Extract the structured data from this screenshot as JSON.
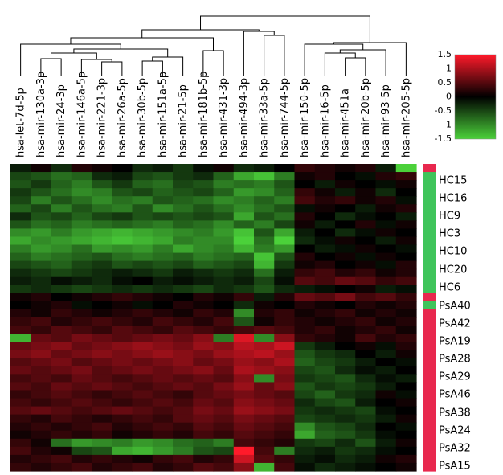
{
  "chart_data": {
    "type": "heatmap",
    "columns": [
      "hsa-let-7d-5p",
      "hsa-mir-130a-3p",
      "hsa-mir-24-3p",
      "hsa-mir-146a-5p",
      "hsa-mir-221-3p",
      "hsa-mir-26a-5p",
      "hsa-mir-30b-5p",
      "hsa-mir-151a-5p",
      "hsa-mir-21-5p",
      "hsa-mir-181b-5p",
      "hsa-mir-431-3p",
      "hsa-mir-494-3p",
      "hsa-mir-33a-5p",
      "hsa-mir-744-5p",
      "hsa-mir-150-5p",
      "hsa-mir-16-5p",
      "hsa-mir-451a",
      "hsa-mir-20b-5p",
      "hsa-mir-93-5p",
      "hsa-mir-205-5p"
    ],
    "row_labels": [
      "HC15",
      "HC16",
      "HC9",
      "HC3",
      "HC10",
      "HC20",
      "HC6",
      "PsA40",
      "PsA42",
      "PsA19",
      "PsA28",
      "PsA29",
      "PsA46",
      "PsA38",
      "PsA24",
      "PsA32",
      "PsA15"
    ],
    "row_count": 38,
    "group_bar": [
      "PsA",
      "HC",
      "HC",
      "HC",
      "HC",
      "HC",
      "HC",
      "HC",
      "HC",
      "HC",
      "HC",
      "HC",
      "HC",
      "HC",
      "HC",
      "HC",
      "PsA",
      "HC",
      "PsA",
      "PsA",
      "PsA",
      "PsA",
      "PsA",
      "PsA",
      "PsA",
      "PsA",
      "PsA",
      "PsA",
      "PsA",
      "PsA",
      "PsA",
      "PsA",
      "PsA",
      "PsA",
      "PsA",
      "PsA",
      "PsA",
      "PsA"
    ],
    "group_colors": {
      "HC": "#3fc45a",
      "PsA": "#e8284e"
    },
    "colorbar": {
      "min": -1.5,
      "max": 1.5,
      "ticks": [
        "1.5",
        "1",
        "0.5",
        "0",
        "-0.5",
        "-1",
        "-1.5"
      ]
    },
    "color_scale": {
      "low": "#4bd13a",
      "mid": "#000000",
      "high": "#ff1a2a"
    },
    "legend_placement": "top-right",
    "values": [
      [
        -0.2,
        0.1,
        -0.3,
        0.2,
        0.1,
        0.0,
        -0.3,
        -0.2,
        -0.4,
        -0.1,
        0.1,
        -0.3,
        -0.2,
        0.0,
        0.3,
        0.2,
        0.1,
        0.2,
        -0.2,
        -1.5
      ],
      [
        -0.5,
        -0.6,
        -0.8,
        -0.7,
        -0.3,
        -0.2,
        -0.5,
        -0.6,
        -0.4,
        -0.3,
        -0.7,
        -1.2,
        -1.4,
        -0.9,
        0.1,
        0.2,
        0.0,
        -0.1,
        0.2,
        0.3
      ],
      [
        -0.6,
        -0.4,
        -0.7,
        -0.9,
        -0.6,
        -0.4,
        -0.7,
        -0.8,
        -0.5,
        -0.6,
        -0.9,
        -0.8,
        -0.9,
        -0.6,
        0.0,
        -0.2,
        0.1,
        0.0,
        -0.1,
        0.1
      ],
      [
        -0.4,
        -0.6,
        -0.8,
        -1.0,
        -0.9,
        -0.6,
        -0.5,
        -0.7,
        -0.6,
        -0.5,
        -0.7,
        -1.1,
        -1.0,
        -0.7,
        0.3,
        0.1,
        -0.2,
        0.1,
        -0.3,
        0.0
      ],
      [
        -0.5,
        -0.9,
        -0.6,
        -0.8,
        -1.0,
        -0.8,
        -0.9,
        -0.6,
        -0.7,
        -0.8,
        -1.0,
        -0.9,
        -0.7,
        -0.9,
        0.4,
        0.2,
        0.3,
        0.1,
        0.2,
        -0.1
      ],
      [
        -0.7,
        -0.5,
        -0.9,
        -0.6,
        -0.8,
        -0.9,
        -0.6,
        -1.0,
        -0.8,
        -0.6,
        -0.8,
        -1.0,
        -0.8,
        -0.6,
        -0.1,
        0.1,
        0.0,
        -0.2,
        0.1,
        0.2
      ],
      [
        -0.3,
        -0.6,
        -0.5,
        -0.7,
        -0.5,
        -0.4,
        -0.6,
        -0.5,
        -0.6,
        -0.5,
        -0.6,
        -1.2,
        -0.6,
        -0.8,
        0.2,
        0.0,
        -0.3,
        -0.1,
        0.0,
        -0.2
      ],
      [
        -0.6,
        -0.8,
        -0.7,
        -0.9,
        -0.8,
        -0.7,
        -0.8,
        -0.9,
        -0.7,
        -0.8,
        -1.0,
        -0.7,
        -0.9,
        -0.5,
        0.1,
        -0.2,
        0.0,
        0.2,
        -0.1,
        0.1
      ],
      [
        -1.0,
        -1.1,
        -0.9,
        -1.1,
        -1.2,
        -1.3,
        -1.2,
        -1.1,
        -1.0,
        -0.9,
        -1.1,
        -1.4,
        -0.6,
        -1.2,
        -0.2,
        0.0,
        -0.3,
        -0.1,
        0.1,
        0.0
      ],
      [
        -1.2,
        -1.0,
        -1.1,
        -1.2,
        -1.3,
        -1.4,
        -1.3,
        -1.2,
        -0.9,
        -1.0,
        -1.0,
        -1.5,
        -0.8,
        -1.5,
        -0.3,
        -0.1,
        0.1,
        0.0,
        -0.2,
        0.1
      ],
      [
        -0.9,
        -1.1,
        -1.0,
        -0.8,
        -1.1,
        -1.0,
        -1.1,
        -0.9,
        -1.2,
        -1.0,
        -0.9,
        -1.3,
        -0.9,
        -1.1,
        0.0,
        -0.2,
        -0.1,
        0.1,
        0.0,
        -0.1
      ],
      [
        -0.7,
        -0.9,
        -0.8,
        -0.7,
        -0.6,
        -0.8,
        -0.9,
        -0.8,
        -0.7,
        -0.9,
        -0.8,
        -0.7,
        -1.4,
        -0.6,
        0.2,
        0.0,
        0.1,
        -0.1,
        0.1,
        0.0
      ],
      [
        -0.5,
        -0.6,
        -0.7,
        -0.5,
        -0.4,
        -0.6,
        -0.5,
        -0.6,
        -0.5,
        -0.7,
        -0.6,
        -0.5,
        -1.3,
        -0.4,
        0.1,
        0.2,
        0.0,
        0.1,
        -0.1,
        0.2
      ],
      [
        -0.3,
        -0.4,
        -0.5,
        -0.4,
        -0.3,
        -0.2,
        -0.3,
        -0.4,
        -0.2,
        -0.3,
        -0.4,
        -0.3,
        -0.8,
        -0.2,
        0.3,
        0.4,
        0.2,
        0.3,
        0.1,
        0.2
      ],
      [
        -0.2,
        -0.3,
        -0.1,
        -0.2,
        -0.3,
        -0.1,
        0.0,
        -0.2,
        -0.1,
        -0.2,
        -0.3,
        -0.2,
        -0.5,
        -0.1,
        0.5,
        0.4,
        0.6,
        0.5,
        0.3,
        0.4
      ],
      [
        -0.4,
        -0.3,
        -0.4,
        -0.5,
        -0.4,
        -0.3,
        -0.4,
        -0.3,
        -0.4,
        -0.5,
        -0.3,
        -0.4,
        -0.6,
        -0.3,
        -0.2,
        -0.1,
        0.0,
        0.1,
        -0.2,
        -0.1
      ],
      [
        0.1,
        0.2,
        0.0,
        0.1,
        0.2,
        0.3,
        0.2,
        0.1,
        0.0,
        0.2,
        0.1,
        0.3,
        -0.2,
        0.2,
        0.6,
        0.5,
        0.7,
        0.4,
        0.5,
        0.3
      ],
      [
        0.0,
        0.1,
        0.2,
        -0.1,
        0.0,
        0.1,
        -0.1,
        0.0,
        0.2,
        0.1,
        0.0,
        -0.3,
        0.1,
        0.0,
        0.2,
        0.1,
        0.0,
        0.2,
        0.1,
        0.2
      ],
      [
        0.2,
        0.1,
        0.3,
        0.2,
        0.1,
        0.2,
        0.3,
        0.2,
        0.1,
        0.3,
        0.2,
        -1.0,
        0.2,
        0.3,
        0.1,
        0.2,
        0.3,
        0.1,
        0.2,
        0.1
      ],
      [
        0.3,
        0.4,
        0.2,
        0.3,
        0.4,
        0.3,
        0.2,
        0.4,
        0.3,
        0.2,
        0.4,
        -0.6,
        0.1,
        0.3,
        0.2,
        0.1,
        0.2,
        0.3,
        0.1,
        0.2
      ],
      [
        0.4,
        0.3,
        0.5,
        0.4,
        0.3,
        0.5,
        0.4,
        0.3,
        0.5,
        0.4,
        0.3,
        0.4,
        0.5,
        0.4,
        0.2,
        0.3,
        0.1,
        0.2,
        0.3,
        0.1
      ],
      [
        -1.3,
        0.6,
        0.5,
        0.7,
        0.6,
        0.5,
        0.6,
        0.7,
        0.6,
        0.8,
        -0.9,
        1.3,
        -1.0,
        0.8,
        0.3,
        0.2,
        0.1,
        0.4,
        0.2,
        0.3
      ],
      [
        0.6,
        0.7,
        0.8,
        0.6,
        0.7,
        0.8,
        0.9,
        0.8,
        0.7,
        0.9,
        0.8,
        1.1,
        1.0,
        1.2,
        -0.4,
        -0.2,
        0.0,
        0.1,
        -0.1,
        0.2
      ],
      [
        0.7,
        0.8,
        0.6,
        0.7,
        0.8,
        0.7,
        0.8,
        0.9,
        0.8,
        0.7,
        0.9,
        1.0,
        1.1,
        0.9,
        -0.6,
        -0.4,
        -0.3,
        0.0,
        -0.2,
        0.1
      ],
      [
        0.5,
        0.6,
        0.7,
        0.5,
        0.6,
        0.7,
        0.6,
        0.7,
        0.8,
        0.6,
        0.7,
        0.9,
        0.8,
        1.0,
        -0.7,
        -0.5,
        -0.4,
        -0.2,
        0.0,
        -0.1
      ],
      [
        0.6,
        0.5,
        0.6,
        0.7,
        0.5,
        0.6,
        0.7,
        0.6,
        0.7,
        0.8,
        0.6,
        1.0,
        0.9,
        0.8,
        -0.5,
        -0.6,
        -0.3,
        -0.1,
        -0.2,
        0.0
      ],
      [
        0.4,
        0.5,
        0.4,
        0.6,
        0.5,
        0.4,
        0.5,
        0.6,
        0.5,
        0.6,
        0.5,
        0.8,
        -1.0,
        0.7,
        -0.4,
        -0.5,
        -0.6,
        -0.3,
        -0.1,
        -0.2
      ],
      [
        0.5,
        0.4,
        0.6,
        0.5,
        0.6,
        0.5,
        0.4,
        0.5,
        0.6,
        0.5,
        0.7,
        0.9,
        0.6,
        0.8,
        -0.6,
        -0.4,
        -0.5,
        -0.4,
        -0.2,
        0.0
      ],
      [
        0.3,
        0.4,
        0.5,
        0.4,
        0.3,
        0.4,
        0.5,
        0.4,
        0.3,
        0.5,
        0.6,
        0.7,
        0.6,
        0.5,
        -0.5,
        -0.7,
        -0.4,
        -0.3,
        0.1,
        -0.1
      ],
      [
        0.4,
        0.3,
        0.4,
        0.5,
        0.4,
        0.3,
        0.4,
        0.5,
        0.4,
        0.6,
        0.5,
        0.8,
        0.7,
        0.6,
        -0.3,
        -0.5,
        -0.6,
        -0.2,
        0.0,
        0.1
      ],
      [
        0.5,
        0.6,
        0.5,
        0.4,
        0.5,
        0.6,
        0.5,
        0.4,
        0.5,
        0.7,
        0.6,
        0.9,
        0.8,
        0.7,
        -0.4,
        -0.3,
        -0.4,
        -0.5,
        -0.1,
        0.0
      ],
      [
        0.3,
        0.2,
        0.4,
        0.3,
        0.2,
        0.3,
        0.4,
        0.3,
        0.5,
        0.6,
        0.5,
        0.7,
        0.6,
        0.5,
        -0.5,
        -0.4,
        -0.3,
        -0.4,
        -0.2,
        0.1
      ],
      [
        0.2,
        0.3,
        0.2,
        0.3,
        0.4,
        0.2,
        0.3,
        0.4,
        0.3,
        0.5,
        0.4,
        0.6,
        0.5,
        0.4,
        -1.0,
        -0.6,
        -0.5,
        -0.3,
        0.0,
        -0.1
      ],
      [
        0.1,
        0.2,
        0.3,
        0.2,
        0.3,
        0.1,
        0.2,
        0.3,
        0.2,
        0.4,
        0.3,
        0.5,
        0.4,
        0.3,
        -1.2,
        -0.7,
        -0.6,
        -0.4,
        -0.1,
        0.0
      ],
      [
        0.3,
        0.1,
        -0.8,
        -1.1,
        -1.0,
        -0.9,
        -1.1,
        -1.0,
        -0.8,
        -0.7,
        -0.9,
        0.4,
        0.3,
        0.2,
        -0.4,
        -0.5,
        -0.3,
        -0.6,
        -0.2,
        0.1
      ],
      [
        0.4,
        0.2,
        0.1,
        -0.5,
        -0.6,
        -1.2,
        -1.3,
        -1.1,
        -0.9,
        -0.6,
        -0.5,
        1.5,
        0.4,
        -0.9,
        -0.3,
        -0.2,
        -0.4,
        -0.3,
        -0.1,
        0.0
      ],
      [
        0.2,
        0.3,
        0.4,
        0.2,
        0.3,
        0.2,
        0.1,
        0.3,
        0.4,
        0.2,
        0.3,
        1.2,
        0.5,
        0.3,
        -0.2,
        -0.1,
        -0.3,
        -0.2,
        0.1,
        0.2
      ],
      [
        0.3,
        0.2,
        0.3,
        0.4,
        0.2,
        0.3,
        0.4,
        0.2,
        0.3,
        0.5,
        0.4,
        0.8,
        -1.3,
        0.4,
        -0.1,
        -0.3,
        -0.2,
        -0.1,
        0.0,
        0.1
      ]
    ]
  }
}
